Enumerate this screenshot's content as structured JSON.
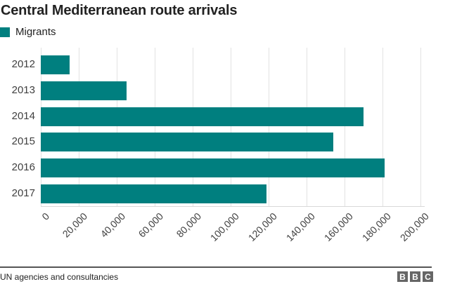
{
  "chart_data": {
    "type": "bar",
    "orientation": "horizontal",
    "title": "Central Mediterranean route arrivals",
    "categories": [
      "2012",
      "2013",
      "2014",
      "2015",
      "2016",
      "2017"
    ],
    "series": [
      {
        "name": "Migrants",
        "color": "#007f7f",
        "values": [
          15000,
          45000,
          170000,
          154000,
          181000,
          119000
        ]
      }
    ],
    "xlabel": "",
    "ylabel": "",
    "xlim": [
      0,
      200000
    ],
    "xticks": [
      "0",
      "20,000",
      "40,000",
      "60,000",
      "80,000",
      "100,000",
      "120,000",
      "140,000",
      "160,000",
      "180,000",
      "200,000"
    ],
    "grid": true,
    "legend_position": "top-left"
  },
  "header": {
    "title": "Central Mediterranean route arrivals",
    "legend_label": "Migrants"
  },
  "footer": {
    "source": "UN agencies and consultancies",
    "logo": [
      "B",
      "B",
      "C"
    ]
  },
  "colors": {
    "bar": "#007f7f",
    "grid": "#e2e2e2"
  }
}
